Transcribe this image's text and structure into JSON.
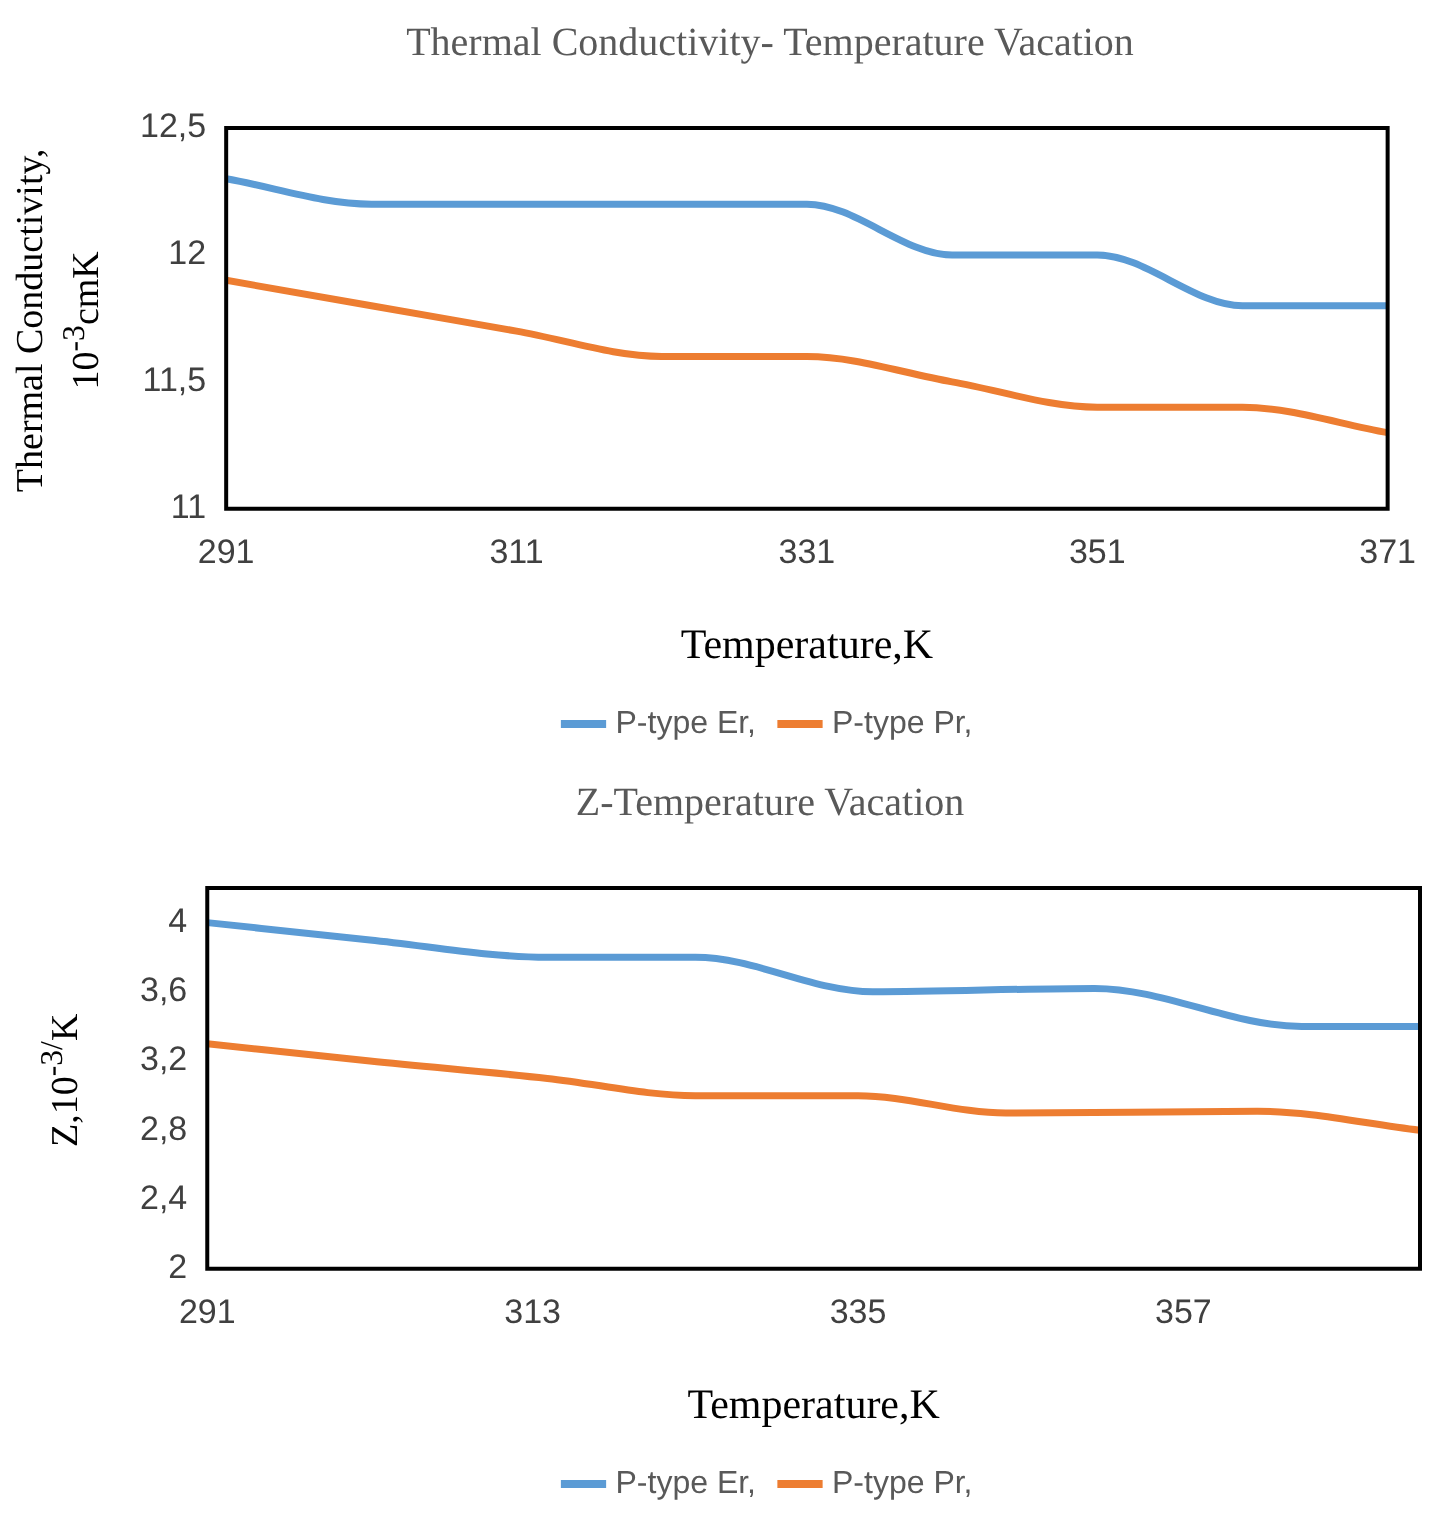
{
  "chart_data": [
    {
      "type": "line",
      "title": "Thermal Conductivity- Temperature Vacation",
      "xlabel": "Temperature,K",
      "ylabel": "Thermal Conductivity, 10$^{-3}$cmK",
      "x": [
        291,
        301,
        311,
        321,
        331,
        341,
        351,
        361,
        371
      ],
      "series": [
        {
          "name": "P-type Er,",
          "color": "#5b9bd5",
          "values": [
            12.3,
            12.2,
            12.2,
            12.2,
            12.2,
            12.0,
            12.0,
            11.8,
            11.8
          ]
        },
        {
          "name": "P-type Pr,",
          "color": "#ed7d31",
          "values": [
            11.9,
            11.8,
            11.7,
            11.6,
            11.6,
            11.5,
            11.4,
            11.4,
            11.3
          ]
        }
      ],
      "xlim": [
        291,
        371
      ],
      "xticks": [
        291,
        311,
        331,
        351,
        371
      ],
      "ylim": [
        11,
        12.5
      ],
      "yticks": [
        11,
        {
          "value": 11.5,
          "label": "11,5"
        },
        12,
        {
          "value": 12.5,
          "label": "12,5"
        }
      ],
      "grid": false,
      "legend": "bottom",
      "marker": "none",
      "line_style": "solid"
    },
    {
      "type": "line",
      "title": "Z-Temperature Vacation",
      "xlabel": "Temperature,K",
      "ylabel": "Z,10$^{-3/}$K",
      "series": [
        {
          "name": "P-type Er,",
          "color": "#5b9bd5",
          "x": [
            291,
            302,
            314,
            324,
            336,
            351,
            365,
            373
          ],
          "values": [
            4.0,
            3.9,
            3.8,
            3.8,
            3.6,
            3.62,
            3.4,
            3.4
          ]
        },
        {
          "name": "P-type Pr,",
          "color": "#ed7d31",
          "x": [
            291,
            302,
            314,
            324,
            335,
            345,
            362,
            373
          ],
          "values": [
            3.3,
            3.2,
            3.1,
            3.0,
            3.0,
            2.9,
            2.91,
            2.8
          ]
        }
      ],
      "xlim": [
        291,
        373
      ],
      "xticks": [
        291,
        313,
        335,
        357
      ],
      "ylim": [
        2,
        4.2
      ],
      "yticks": [
        2,
        {
          "value": 2.4,
          "label": "2,4"
        },
        {
          "value": 2.8,
          "label": "2,8"
        },
        {
          "value": 3.2,
          "label": "3,2"
        },
        {
          "value": 3.6,
          "label": "3,6"
        },
        4
      ],
      "grid": false,
      "legend": "bottom",
      "marker": "none",
      "line_style": "solid"
    }
  ]
}
